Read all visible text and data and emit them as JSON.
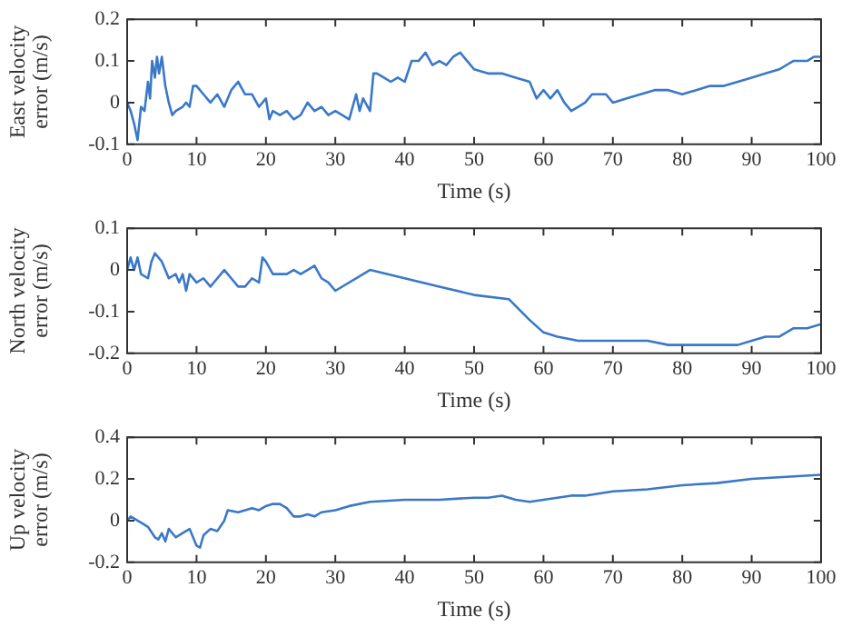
{
  "chart_data": [
    {
      "type": "line",
      "xlabel": "Time (s)",
      "ylabel": "East velocity error (m/s)",
      "xlim": [
        0,
        100
      ],
      "xticks": [
        0,
        10,
        20,
        30,
        40,
        50,
        60,
        70,
        80,
        90,
        100
      ],
      "ylim": [
        -0.1,
        0.2
      ],
      "yticks": [
        -0.1,
        0,
        0.1,
        0.2
      ],
      "marker": "none",
      "line_style": "solid",
      "series": [
        {
          "color": "#3a78c8",
          "x": [
            0,
            0.5,
            1,
            1.5,
            2,
            2.5,
            3,
            3.3,
            3.6,
            4,
            4.3,
            4.6,
            5,
            5.5,
            6,
            6.5,
            7,
            8,
            8.5,
            9,
            9.5,
            10,
            11,
            12,
            13,
            14,
            15,
            16,
            17,
            18,
            19,
            20,
            20.5,
            21,
            22,
            23,
            24,
            25,
            26,
            27,
            28,
            29,
            30,
            31,
            32,
            33,
            33.5,
            34,
            35,
            35.5,
            36,
            37,
            38,
            39,
            40,
            41,
            42,
            43,
            44,
            45,
            46,
            47,
            48,
            49,
            50,
            52,
            54,
            56,
            58,
            59,
            60,
            61,
            62,
            63,
            64,
            65,
            66,
            67,
            68,
            69,
            70,
            72,
            74,
            76,
            78,
            80,
            82,
            84,
            86,
            88,
            90,
            92,
            94,
            96,
            98,
            99,
            100
          ],
          "values": [
            0,
            -0.02,
            -0.05,
            -0.09,
            -0.01,
            -0.02,
            0.05,
            0.01,
            0.1,
            0.06,
            0.11,
            0.07,
            0.11,
            0.04,
            0,
            -0.03,
            -0.02,
            -0.01,
            0,
            -0.01,
            0.04,
            0.04,
            0.02,
            0,
            0.02,
            -0.01,
            0.03,
            0.05,
            0.02,
            0.02,
            -0.01,
            0.01,
            -0.04,
            -0.02,
            -0.03,
            -0.02,
            -0.04,
            -0.03,
            0,
            -0.02,
            -0.01,
            -0.03,
            -0.02,
            -0.03,
            -0.04,
            0.02,
            -0.02,
            0.01,
            -0.02,
            0.07,
            0.07,
            0.06,
            0.05,
            0.06,
            0.05,
            0.1,
            0.1,
            0.12,
            0.09,
            0.1,
            0.09,
            0.11,
            0.12,
            0.1,
            0.08,
            0.07,
            0.07,
            0.06,
            0.05,
            0.01,
            0.03,
            0.01,
            0.03,
            0,
            -0.02,
            -0.01,
            0,
            0.02,
            0.02,
            0.02,
            0,
            0.01,
            0.02,
            0.03,
            0.03,
            0.02,
            0.03,
            0.04,
            0.04,
            0.05,
            0.06,
            0.07,
            0.08,
            0.1,
            0.1,
            0.11,
            0.11
          ]
        }
      ]
    },
    {
      "type": "line",
      "xlabel": "Time (s)",
      "ylabel": "North velocity error (m/s)",
      "xlim": [
        0,
        100
      ],
      "xticks": [
        0,
        10,
        20,
        30,
        40,
        50,
        60,
        70,
        80,
        90,
        100
      ],
      "ylim": [
        -0.2,
        0.1
      ],
      "yticks": [
        -0.2,
        -0.1,
        0,
        0.1
      ],
      "marker": "none",
      "line_style": "solid",
      "series": [
        {
          "color": "#3a78c8",
          "x": [
            0,
            0.5,
            1,
            1.5,
            2,
            3,
            3.5,
            4,
            5,
            6,
            7,
            7.5,
            8,
            8.5,
            9,
            10,
            11,
            12,
            13,
            14,
            15,
            16,
            17,
            18,
            19,
            19.5,
            20,
            21,
            22,
            23,
            24,
            25,
            26,
            27,
            28,
            29,
            30,
            35,
            40,
            45,
            50,
            55,
            58,
            60,
            62,
            65,
            70,
            75,
            78,
            80,
            82,
            85,
            88,
            90,
            92,
            94,
            96,
            98,
            100
          ],
          "values": [
            0,
            0.03,
            0,
            0.03,
            -0.01,
            -0.02,
            0.02,
            0.04,
            0.02,
            -0.02,
            -0.01,
            -0.03,
            -0.01,
            -0.05,
            -0.01,
            -0.03,
            -0.02,
            -0.04,
            -0.02,
            0,
            -0.02,
            -0.04,
            -0.04,
            -0.02,
            -0.03,
            0.03,
            0.02,
            -0.01,
            -0.01,
            -0.01,
            0,
            -0.01,
            0,
            0.01,
            -0.02,
            -0.03,
            -0.05,
            0,
            -0.02,
            -0.04,
            -0.06,
            -0.07,
            -0.12,
            -0.15,
            -0.16,
            -0.17,
            -0.17,
            -0.17,
            -0.18,
            -0.18,
            -0.18,
            -0.18,
            -0.18,
            -0.17,
            -0.16,
            -0.16,
            -0.14,
            -0.14,
            -0.13
          ]
        }
      ]
    },
    {
      "type": "line",
      "xlabel": "Time (s)",
      "ylabel": "Up velocity error (m/s)",
      "xlim": [
        0,
        100
      ],
      "xticks": [
        0,
        10,
        20,
        30,
        40,
        50,
        60,
        70,
        80,
        90,
        100
      ],
      "ylim": [
        -0.2,
        0.4
      ],
      "yticks": [
        -0.2,
        0,
        0.2,
        0.4
      ],
      "marker": "none",
      "line_style": "solid",
      "series": [
        {
          "color": "#3a78c8",
          "x": [
            0,
            0.5,
            1,
            2,
            3,
            4,
            4.5,
            5,
            5.5,
            6,
            7,
            8,
            9,
            10,
            10.5,
            11,
            12,
            13,
            14,
            14.5,
            16,
            17,
            18,
            19,
            20,
            21,
            22,
            23,
            24,
            25,
            26,
            27,
            28,
            30,
            32,
            35,
            40,
            45,
            50,
            52,
            54,
            56,
            58,
            60,
            62,
            64,
            66,
            70,
            75,
            80,
            85,
            90,
            95,
            100
          ],
          "values": [
            0,
            0.02,
            0.01,
            -0.01,
            -0.03,
            -0.08,
            -0.09,
            -0.06,
            -0.1,
            -0.04,
            -0.08,
            -0.06,
            -0.04,
            -0.12,
            -0.13,
            -0.07,
            -0.04,
            -0.05,
            0,
            0.05,
            0.04,
            0.05,
            0.06,
            0.05,
            0.07,
            0.08,
            0.08,
            0.06,
            0.02,
            0.02,
            0.03,
            0.02,
            0.04,
            0.05,
            0.07,
            0.09,
            0.1,
            0.1,
            0.11,
            0.11,
            0.12,
            0.1,
            0.09,
            0.1,
            0.11,
            0.12,
            0.12,
            0.14,
            0.15,
            0.17,
            0.18,
            0.2,
            0.21,
            0.22
          ]
        }
      ]
    }
  ]
}
